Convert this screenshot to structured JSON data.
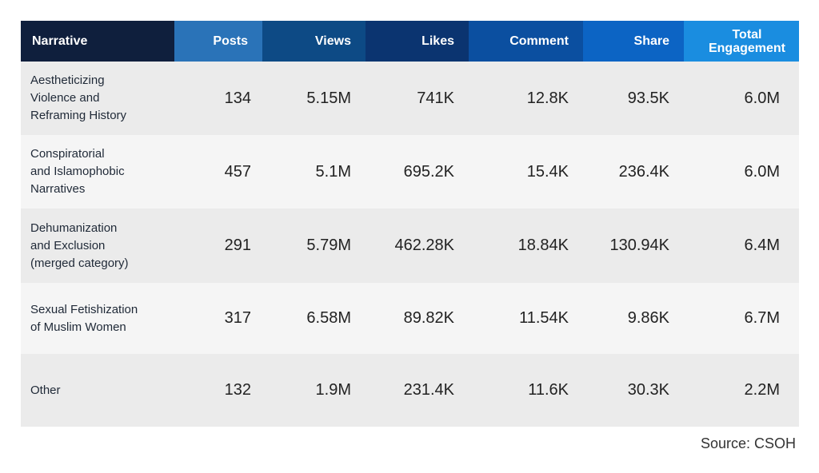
{
  "chart_data": {
    "type": "table",
    "columns": [
      "Narrative",
      "Posts",
      "Views",
      "Likes",
      "Comment",
      "Share",
      "Total\nEngagement"
    ],
    "rows": [
      [
        "Aestheticizing\nViolence and\nReframing History",
        "134",
        "5.15M",
        "741K",
        "12.8K",
        "93.5K",
        "6.0M"
      ],
      [
        "Conspiratorial\nand Islamophobic\nNarratives",
        "457",
        "5.1M",
        "695.2K",
        "15.4K",
        "236.4K",
        "6.0M"
      ],
      [
        "Dehumanization\nand Exclusion\n(merged category)",
        "291",
        "5.79M",
        "462.28K",
        "18.84K",
        "130.94K",
        "6.4M"
      ],
      [
        "Sexual Fetishization\nof Muslim Women",
        "317",
        "6.58M",
        "89.82K",
        "11.54K",
        "9.86K",
        "6.7M"
      ],
      [
        "Other",
        "132",
        "1.9M",
        "231.4K",
        "11.6K",
        "30.3K",
        "2.2M"
      ]
    ],
    "header_colors": [
      "#0f1f3d",
      "#2a73b8",
      "#0d4a85",
      "#0b3470",
      "#0b4fa0",
      "#0c64c4",
      "#1a8de0"
    ],
    "row_colors": [
      "#ebebeb",
      "#f5f5f5"
    ]
  },
  "source": "Source: CSOH"
}
